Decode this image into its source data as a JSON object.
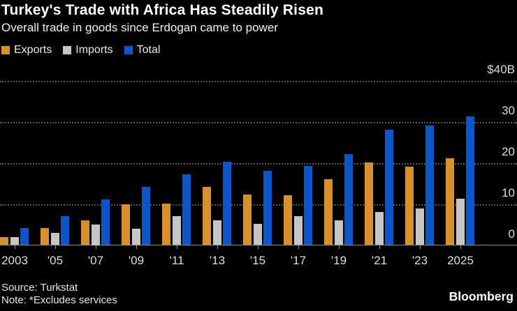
{
  "header": {
    "title": "Turkey's Trade with Africa Has Steadily Risen",
    "subtitle": "Overall trade in goods since Erdogan came to power"
  },
  "legend": [
    {
      "label": "Exports",
      "color": "#D9902C"
    },
    {
      "label": "Imports",
      "color": "#C6C6C6"
    },
    {
      "label": "Total",
      "color": "#0D56C9"
    }
  ],
  "chart_data": {
    "type": "bar",
    "title": "Turkey's Trade with Africa Has Steadily Risen",
    "subtitle": "Overall trade in goods since Erdogan came to power",
    "unit": "USD billions",
    "categories": [
      2003,
      2005,
      2007,
      2009,
      2011,
      2013,
      2015,
      2017,
      2019,
      2021,
      2023,
      2025
    ],
    "x_tick_labels": [
      "2003",
      "'05",
      "'07",
      "'09",
      "'11",
      "'13",
      "'15",
      "'17",
      "'19",
      "'21",
      "'23",
      "2025"
    ],
    "series": [
      {
        "name": "Exports",
        "color": "#D9902C",
        "values": [
          1.9,
          4.1,
          6.1,
          10.0,
          10.1,
          14.2,
          12.3,
          12.1,
          16.1,
          20.1,
          19.0,
          21.1
        ]
      },
      {
        "name": "Imports",
        "color": "#C6C6C6",
        "values": [
          2.0,
          2.9,
          5.0,
          4.0,
          7.1,
          6.0,
          5.1,
          7.0,
          6.0,
          8.0,
          8.9,
          11.2
        ]
      },
      {
        "name": "Total",
        "color": "#0D56C9",
        "values": [
          4.1,
          7.1,
          11.1,
          14.2,
          17.2,
          20.2,
          18.0,
          19.2,
          22.2,
          28.1,
          29.1,
          31.2
        ]
      }
    ],
    "ylim": [
      0,
      40
    ],
    "y_ticks": [
      {
        "value": 40,
        "label": "$40B"
      },
      {
        "value": 30,
        "label": "30"
      },
      {
        "value": 20,
        "label": "20"
      },
      {
        "value": 10,
        "label": "10"
      },
      {
        "value": 0,
        "label": "0"
      }
    ],
    "grid": "dotted-horizontal",
    "legend_position": "top-left",
    "y_axis_side": "right"
  },
  "footer": {
    "source": "Source: Turkstat",
    "note": "Note: *Excludes services",
    "brand": "Bloomberg"
  }
}
